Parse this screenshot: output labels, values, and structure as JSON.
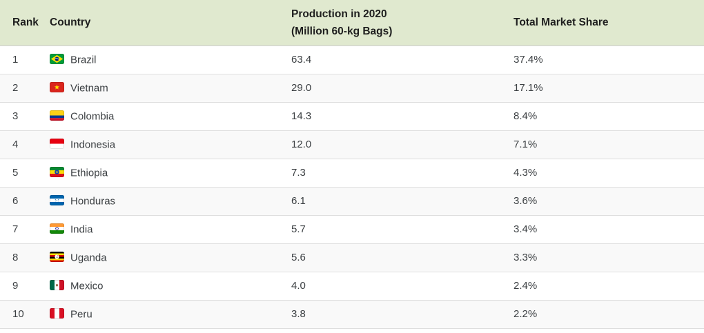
{
  "table": {
    "columns": [
      {
        "id": "rank",
        "label": "Rank"
      },
      {
        "id": "country",
        "label": "Country"
      },
      {
        "id": "production",
        "label_line1": "Production in 2020",
        "label_line2": "(Million 60-kg Bags)"
      },
      {
        "id": "share",
        "label": "Total Market Share"
      }
    ],
    "rows": [
      {
        "rank": "1",
        "country": "Brazil",
        "flag": "brazil-flag-icon",
        "production": "63.4",
        "share": "37.4%"
      },
      {
        "rank": "2",
        "country": "Vietnam",
        "flag": "vietnam-flag-icon",
        "production": "29.0",
        "share": "17.1%"
      },
      {
        "rank": "3",
        "country": "Colombia",
        "flag": "colombia-flag-icon",
        "production": "14.3",
        "share": "8.4%"
      },
      {
        "rank": "4",
        "country": "Indonesia",
        "flag": "indonesia-flag-icon",
        "production": "12.0",
        "share": "7.1%"
      },
      {
        "rank": "5",
        "country": "Ethiopia",
        "flag": "ethiopia-flag-icon",
        "production": "7.3",
        "share": "4.3%"
      },
      {
        "rank": "6",
        "country": "Honduras",
        "flag": "honduras-flag-icon",
        "production": "6.1",
        "share": "3.6%"
      },
      {
        "rank": "7",
        "country": "India",
        "flag": "india-flag-icon",
        "production": "5.7",
        "share": "3.4%"
      },
      {
        "rank": "8",
        "country": "Uganda",
        "flag": "uganda-flag-icon",
        "production": "5.6",
        "share": "3.3%"
      },
      {
        "rank": "9",
        "country": "Mexico",
        "flag": "mexico-flag-icon",
        "production": "4.0",
        "share": "2.4%"
      },
      {
        "rank": "10",
        "country": "Peru",
        "flag": "peru-flag-icon",
        "production": "3.8",
        "share": "2.2%"
      }
    ]
  },
  "colors": {
    "header_bg": "#e0e9cf",
    "header_text": "#1e1e1e",
    "header_divider": "#cfcfcf",
    "row_alt_bg": "#f9f9f9",
    "row_divider": "#dedede",
    "body_text": "#3b3f42"
  },
  "chart_data": {
    "type": "table",
    "columns": [
      "Rank",
      "Country",
      "Production in 2020 (Million 60-kg Bags)",
      "Total Market Share"
    ],
    "rows": [
      [
        1,
        "Brazil",
        63.4,
        "37.4%"
      ],
      [
        2,
        "Vietnam",
        29.0,
        "17.1%"
      ],
      [
        3,
        "Colombia",
        14.3,
        "8.4%"
      ],
      [
        4,
        "Indonesia",
        12.0,
        "7.1%"
      ],
      [
        5,
        "Ethiopia",
        7.3,
        "4.3%"
      ],
      [
        6,
        "Honduras",
        6.1,
        "3.6%"
      ],
      [
        7,
        "India",
        5.7,
        "3.4%"
      ],
      [
        8,
        "Uganda",
        5.6,
        "3.3%"
      ],
      [
        9,
        "Mexico",
        4.0,
        "2.4%"
      ],
      [
        10,
        "Peru",
        3.8,
        "2.2%"
      ]
    ]
  }
}
